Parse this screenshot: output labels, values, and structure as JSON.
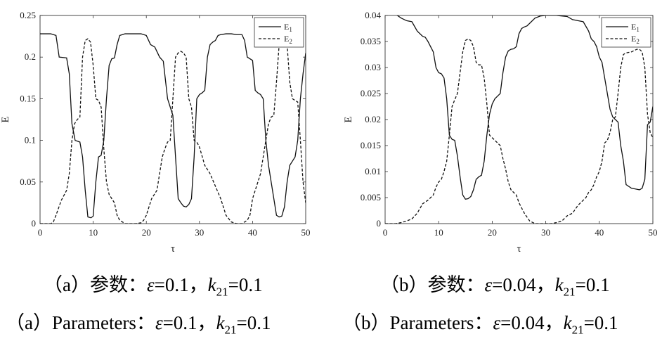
{
  "chart_data": [
    {
      "type": "line",
      "xlabel": "τ",
      "ylabel": "E",
      "xlim": [
        0,
        50
      ],
      "ylim": [
        0,
        0.25
      ],
      "xticks": [
        "0",
        "10",
        "20",
        "30",
        "40",
        "50"
      ],
      "yticks": [
        "0",
        "0.05",
        "0.1",
        "0.15",
        "0.2",
        "0.25"
      ],
      "legend_position": "top-right",
      "series": [
        {
          "name": "E_1",
          "style": "solid",
          "x": [
            0,
            1,
            2,
            3,
            3.6,
            5,
            5.5,
            6,
            6.6,
            7.5,
            8,
            8.5,
            9,
            9.6,
            10,
            10.5,
            11,
            11.5,
            12,
            12.5,
            13,
            13.5,
            14,
            14.5,
            15,
            15.5,
            16,
            17,
            18,
            19,
            20,
            20.8,
            21.6,
            22.5,
            23.2,
            24,
            24.5,
            25,
            25.5,
            26,
            26.5,
            27,
            27.5,
            28,
            28.5,
            29,
            29.5,
            30,
            30.5,
            31,
            31.5,
            32,
            32.5,
            33,
            33.5,
            34,
            35,
            36,
            37,
            38,
            38.5,
            39,
            39.5,
            40,
            40.5,
            41,
            41.5,
            42,
            42.5,
            43,
            43.5,
            44,
            44.5,
            45,
            45.5,
            46,
            46.5,
            47,
            47.5,
            48,
            48.5,
            49,
            49.5,
            50
          ],
          "y": [
            0.228,
            0.228,
            0.228,
            0.226,
            0.2,
            0.199,
            0.18,
            0.12,
            0.1,
            0.098,
            0.08,
            0.04,
            0.008,
            0.007,
            0.009,
            0.05,
            0.08,
            0.082,
            0.1,
            0.15,
            0.19,
            0.198,
            0.199,
            0.215,
            0.226,
            0.227,
            0.228,
            0.228,
            0.228,
            0.228,
            0.226,
            0.215,
            0.212,
            0.2,
            0.195,
            0.15,
            0.14,
            0.13,
            0.08,
            0.03,
            0.025,
            0.021,
            0.02,
            0.023,
            0.03,
            0.08,
            0.15,
            0.155,
            0.157,
            0.16,
            0.2,
            0.215,
            0.218,
            0.22,
            0.226,
            0.227,
            0.228,
            0.228,
            0.227,
            0.227,
            0.22,
            0.2,
            0.198,
            0.196,
            0.16,
            0.157,
            0.155,
            0.15,
            0.1,
            0.07,
            0.05,
            0.03,
            0.01,
            0.008,
            0.009,
            0.02,
            0.05,
            0.07,
            0.075,
            0.08,
            0.1,
            0.15,
            0.18,
            0.205
          ]
        },
        {
          "name": "E_2",
          "style": "dashed",
          "x": [
            0,
            1,
            2,
            2.5,
            3,
            4,
            5,
            5.5,
            6,
            6.5,
            7,
            7.5,
            8,
            8.5,
            9,
            9.5,
            10,
            10.5,
            11,
            11.5,
            12,
            12.5,
            13,
            13.5,
            14,
            14.5,
            15,
            16,
            17,
            18,
            19,
            19.5,
            20,
            21,
            21.5,
            22,
            23,
            23.5,
            24,
            24.5,
            25,
            25.5,
            26,
            26.5,
            27,
            27.5,
            28,
            28.5,
            29,
            29.5,
            30,
            31,
            32,
            33,
            34,
            35,
            36,
            37,
            37.5,
            38,
            38.5,
            39,
            39.5,
            40,
            40.5,
            41,
            41.5,
            42,
            42.5,
            43,
            43.5,
            44,
            44.5,
            45,
            45.5,
            46,
            46.5,
            47,
            47.5,
            48,
            48.5,
            49,
            49.5,
            50
          ],
          "y": [
            0,
            0,
            0,
            0.002,
            0.01,
            0.028,
            0.04,
            0.06,
            0.1,
            0.12,
            0.125,
            0.128,
            0.2,
            0.22,
            0.222,
            0.218,
            0.19,
            0.15,
            0.148,
            0.14,
            0.09,
            0.05,
            0.035,
            0.03,
            0.025,
            0.01,
            0.004,
            0,
            0,
            0,
            0.001,
            0.004,
            0.01,
            0.03,
            0.035,
            0.04,
            0.08,
            0.09,
            0.098,
            0.1,
            0.15,
            0.2,
            0.205,
            0.207,
            0.205,
            0.2,
            0.15,
            0.14,
            0.1,
            0.098,
            0.092,
            0.07,
            0.06,
            0.045,
            0.03,
            0.01,
            0.002,
            0,
            0,
            0,
            0.002,
            0.004,
            0.01,
            0.03,
            0.04,
            0.05,
            0.06,
            0.08,
            0.1,
            0.12,
            0.128,
            0.13,
            0.17,
            0.215,
            0.22,
            0.22,
            0.215,
            0.17,
            0.15,
            0.148,
            0.146,
            0.1,
            0.05,
            0.025
          ]
        }
      ]
    },
    {
      "type": "line",
      "xlabel": "τ",
      "ylabel": "E",
      "xlim": [
        0,
        50
      ],
      "ylim": [
        0,
        0.04
      ],
      "xticks": [
        "0",
        "10",
        "20",
        "30",
        "40",
        "50"
      ],
      "yticks": [
        "0",
        "0.005",
        "0.01",
        "0.015",
        "0.02",
        "0.025",
        "0.03",
        "0.035",
        "0.04"
      ],
      "legend_position": "top-right",
      "series": [
        {
          "name": "E_1",
          "style": "solid",
          "x": [
            0,
            1,
            2,
            3,
            4,
            5,
            6,
            7,
            7.5,
            8,
            8.5,
            9,
            9.5,
            10,
            10.5,
            11,
            11.5,
            12,
            12.5,
            13,
            13.5,
            14,
            14.5,
            15,
            15.5,
            16,
            16.5,
            17,
            17.5,
            18,
            18.5,
            19,
            19.5,
            20,
            20.5,
            21,
            21.5,
            22,
            22.5,
            23,
            23.5,
            24,
            24.5,
            25,
            25.5,
            26,
            26.5,
            27,
            28,
            29,
            30,
            31,
            32,
            33,
            34,
            35,
            36,
            37,
            38,
            38.5,
            39,
            39.5,
            40,
            40.5,
            41,
            41.5,
            42,
            42.5,
            43,
            43.5,
            44,
            44.5,
            45,
            46,
            47,
            47.5,
            48,
            48.5,
            49,
            49.5,
            50
          ],
          "y": [
            0.0402,
            0.0402,
            0.0402,
            0.0395,
            0.039,
            0.0388,
            0.037,
            0.036,
            0.0358,
            0.035,
            0.034,
            0.033,
            0.03,
            0.029,
            0.0288,
            0.028,
            0.024,
            0.017,
            0.0162,
            0.016,
            0.013,
            0.009,
            0.0055,
            0.0047,
            0.0048,
            0.0052,
            0.0065,
            0.0085,
            0.009,
            0.0093,
            0.012,
            0.017,
            0.021,
            0.023,
            0.024,
            0.0245,
            0.025,
            0.029,
            0.032,
            0.0332,
            0.0335,
            0.0336,
            0.034,
            0.0365,
            0.0375,
            0.0378,
            0.038,
            0.0385,
            0.0395,
            0.0399,
            0.04,
            0.04,
            0.04,
            0.0399,
            0.0398,
            0.0392,
            0.039,
            0.0388,
            0.037,
            0.0355,
            0.035,
            0.034,
            0.032,
            0.031,
            0.028,
            0.025,
            0.022,
            0.0205,
            0.02,
            0.0195,
            0.015,
            0.012,
            0.0075,
            0.0068,
            0.0066,
            0.0065,
            0.0068,
            0.0085,
            0.019,
            0.0195,
            0.0225
          ]
        },
        {
          "name": "E_2",
          "style": "dashed",
          "x": [
            0,
            1,
            2,
            3,
            4,
            5,
            6,
            7,
            8,
            9,
            9.5,
            10,
            10.5,
            11,
            11.5,
            12,
            12.5,
            13,
            13.5,
            14,
            14.5,
            15,
            15.5,
            16,
            16.5,
            17,
            17.5,
            18,
            18.5,
            19,
            19.5,
            20,
            20.5,
            21,
            21.5,
            22,
            22.5,
            23,
            23.5,
            24,
            24.5,
            25,
            26,
            27,
            28,
            29,
            30,
            31,
            32,
            33,
            34,
            35,
            36,
            37,
            37.5,
            38,
            38.5,
            39,
            39.5,
            40,
            40.5,
            41,
            41.5,
            42,
            42.5,
            43,
            43.5,
            44,
            44.5,
            45,
            46,
            47,
            47.5,
            48,
            48.5,
            49,
            49.5,
            50
          ],
          "y": [
            0,
            0,
            0,
            0.0002,
            0.0005,
            0.0009,
            0.002,
            0.0038,
            0.0045,
            0.0055,
            0.007,
            0.008,
            0.0085,
            0.01,
            0.012,
            0.017,
            0.0225,
            0.0238,
            0.025,
            0.029,
            0.033,
            0.0352,
            0.0355,
            0.0352,
            0.034,
            0.031,
            0.0305,
            0.0305,
            0.028,
            0.023,
            0.017,
            0.0165,
            0.016,
            0.0155,
            0.015,
            0.0125,
            0.0105,
            0.008,
            0.0065,
            0.006,
            0.0055,
            0.004,
            0.002,
            0.0005,
            0,
            0,
            0,
            0,
            0.0002,
            0.0005,
            0.0015,
            0.002,
            0.0035,
            0.0045,
            0.005,
            0.006,
            0.0065,
            0.0075,
            0.009,
            0.01,
            0.012,
            0.0155,
            0.016,
            0.0175,
            0.02,
            0.0205,
            0.025,
            0.03,
            0.0325,
            0.0328,
            0.033,
            0.0335,
            0.0335,
            0.033,
            0.03,
            0.021,
            0.0175,
            0.0165
          ]
        }
      ]
    }
  ],
  "captions": {
    "a_cn": {
      "prefix": "（a）参数：",
      "eps_label": "ε",
      "eps_value": "=0.1，",
      "k_label": "k",
      "k_sub": "21",
      "k_value": "=0.1"
    },
    "b_cn": {
      "prefix": "（b）参数：",
      "eps_label": "ε",
      "eps_value": "=0.04，",
      "k_label": "k",
      "k_sub": "21",
      "k_value": "=0.1"
    },
    "a_en": {
      "prefix": "（a）Parameters：",
      "eps_label": "ε",
      "eps_value": "=0.1，",
      "k_label": "k",
      "k_sub": "21",
      "k_value": "=0.1"
    },
    "b_en": {
      "prefix": "（b）Parameters：",
      "eps_label": "ε",
      "eps_value": "=0.04，",
      "k_label": "k",
      "k_sub": "21",
      "k_value": "=0.1"
    }
  },
  "legend": {
    "e1_main": "E",
    "e1_sub": "1",
    "e2_main": "E",
    "e2_sub": "2"
  }
}
